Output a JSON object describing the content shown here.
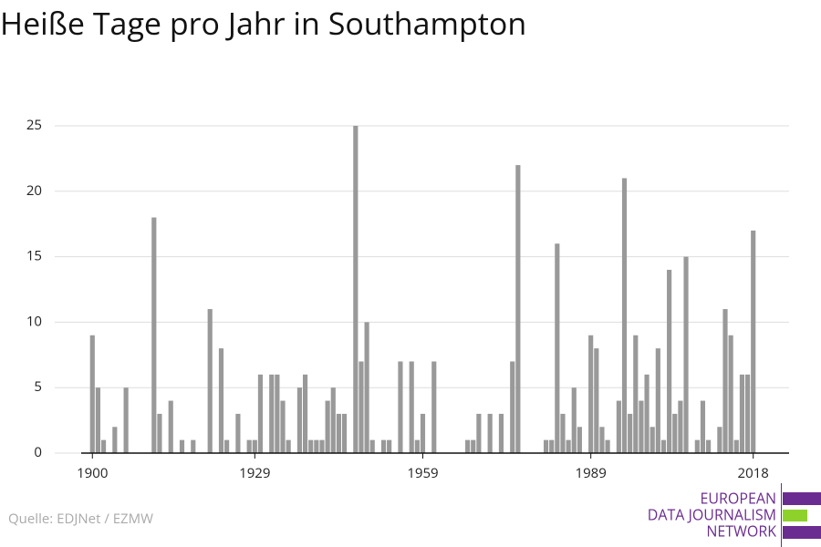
{
  "chart_data": {
    "type": "bar",
    "title": "Heiße Tage pro Jahr in Southampton",
    "source": "Quelle: EDJNet / EZMW",
    "logo": [
      "EUROPEAN",
      "DATA JOURNALISM",
      "NETWORK"
    ],
    "color": "#999999",
    "grid": true,
    "x": [
      1900,
      1901,
      1902,
      1903,
      1904,
      1905,
      1906,
      1907,
      1908,
      1909,
      1910,
      1911,
      1912,
      1913,
      1914,
      1915,
      1916,
      1917,
      1918,
      1919,
      1920,
      1921,
      1922,
      1923,
      1924,
      1925,
      1926,
      1927,
      1928,
      1929,
      1930,
      1931,
      1932,
      1933,
      1934,
      1935,
      1936,
      1937,
      1938,
      1939,
      1940,
      1941,
      1942,
      1943,
      1944,
      1945,
      1946,
      1947,
      1948,
      1949,
      1950,
      1951,
      1952,
      1953,
      1954,
      1955,
      1956,
      1957,
      1958,
      1959,
      1960,
      1961,
      1962,
      1963,
      1964,
      1965,
      1966,
      1967,
      1968,
      1969,
      1970,
      1971,
      1972,
      1973,
      1974,
      1975,
      1976,
      1977,
      1978,
      1979,
      1980,
      1981,
      1982,
      1983,
      1984,
      1985,
      1986,
      1987,
      1988,
      1989,
      1990,
      1991,
      1992,
      1993,
      1994,
      1995,
      1996,
      1997,
      1998,
      1999,
      2000,
      2001,
      2002,
      2003,
      2004,
      2005,
      2006,
      2007,
      2008,
      2009,
      2010,
      2011,
      2012,
      2013,
      2014,
      2015,
      2016,
      2017,
      2018
    ],
    "values": [
      9,
      5,
      1,
      0,
      2,
      0,
      5,
      0,
      0,
      0,
      0,
      18,
      3,
      0,
      4,
      0,
      1,
      0,
      1,
      0,
      0,
      11,
      0,
      8,
      1,
      0,
      3,
      0,
      1,
      1,
      6,
      0,
      6,
      6,
      4,
      1,
      0,
      5,
      6,
      1,
      1,
      1,
      4,
      5,
      3,
      3,
      0,
      25,
      7,
      10,
      1,
      0,
      1,
      1,
      0,
      7,
      0,
      7,
      1,
      3,
      0,
      7,
      0,
      0,
      0,
      0,
      0,
      1,
      1,
      3,
      0,
      3,
      0,
      3,
      0,
      7,
      22,
      0,
      0,
      0,
      0,
      1,
      1,
      16,
      3,
      1,
      5,
      2,
      0,
      9,
      8,
      2,
      1,
      0,
      4,
      21,
      3,
      9,
      4,
      6,
      2,
      8,
      1,
      14,
      3,
      4,
      15,
      0,
      1,
      4,
      1,
      0,
      2,
      11,
      9,
      1,
      6,
      6,
      17
    ],
    "xlim": [
      1898,
      2024.4
    ],
    "xticks": [
      1900,
      1929,
      1959,
      1989,
      2018
    ],
    "ylim": [
      0,
      25
    ],
    "yticks": [
      0,
      5,
      10,
      15,
      20,
      25
    ]
  }
}
